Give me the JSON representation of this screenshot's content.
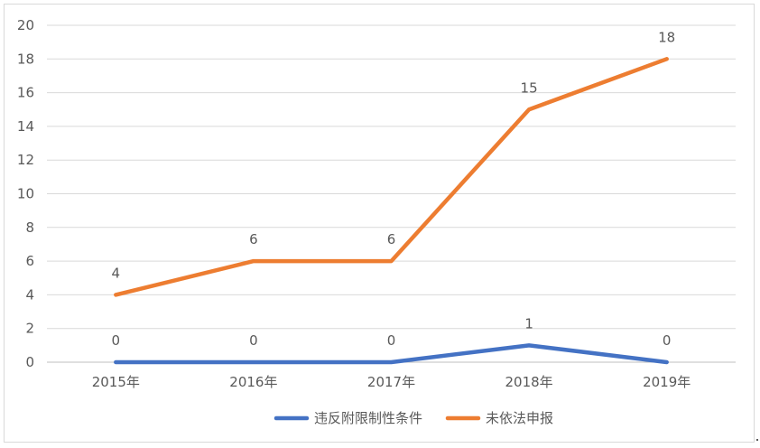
{
  "chart_data": {
    "type": "line",
    "categories": [
      "2015年",
      "2016年",
      "2017年",
      "2018年",
      "2019年"
    ],
    "series": [
      {
        "name": "违反附限制性条件",
        "values": [
          0,
          0,
          0,
          1,
          0
        ],
        "color": "#4472c4"
      },
      {
        "name": "未依法申报",
        "values": [
          4,
          6,
          6,
          15,
          18
        ],
        "color": "#ed7d31"
      }
    ],
    "ylim": [
      0,
      20
    ],
    "yticks": [
      0,
      2,
      4,
      6,
      8,
      10,
      12,
      14,
      16,
      18,
      20
    ],
    "grid": true,
    "legend_position": "bottom",
    "data_labels": true,
    "title": "",
    "xlabel": "",
    "ylabel": ""
  }
}
